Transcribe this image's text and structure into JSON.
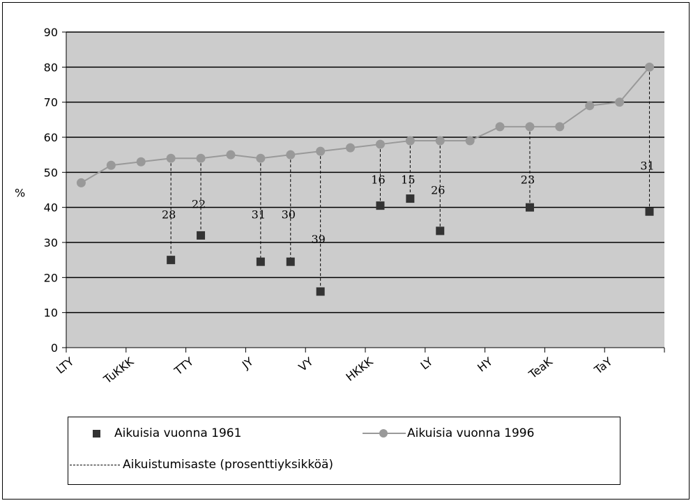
{
  "chart_data": {
    "type": "line",
    "ylabel": "%",
    "ylim": [
      0,
      90
    ],
    "yticks": [
      0,
      10,
      20,
      30,
      40,
      50,
      60,
      70,
      80,
      90
    ],
    "xtick_labels": [
      "LTY",
      "TuKKK",
      "TTY",
      "JY",
      "VY",
      "HKKK",
      "LY",
      "HY",
      "TeaK",
      "TaY"
    ],
    "grid": true,
    "legend_position": "bottom",
    "series_1996": {
      "name": "Aikuisia vuonna 1996",
      "color": "#999999",
      "values": [
        47,
        52,
        53,
        54,
        54,
        55,
        54,
        55,
        56,
        57,
        58,
        59,
        59,
        59,
        63,
        63,
        63,
        69,
        70,
        80
      ]
    },
    "series_1961": {
      "name": "Aikuisia vuonna 1961",
      "color": "#333333",
      "points": [
        {
          "x": 3,
          "y": 25
        },
        {
          "x": 4,
          "y": 32
        },
        {
          "x": 6,
          "y": 24.5
        },
        {
          "x": 7,
          "y": 24.5
        },
        {
          "x": 8,
          "y": 16
        },
        {
          "x": 10,
          "y": 40.5
        },
        {
          "x": 11,
          "y": 42.5
        },
        {
          "x": 12,
          "y": 33.3
        },
        {
          "x": 15,
          "y": 40
        },
        {
          "x": 19,
          "y": 38.8
        }
      ]
    },
    "differences": {
      "name": "Aikuistumisaste (prosenttiyksikköä)",
      "items": [
        {
          "x": 3,
          "label": "28",
          "label_y": 38
        },
        {
          "x": 4,
          "label": "22",
          "label_y": 41
        },
        {
          "x": 6,
          "label": "31",
          "label_y": 38
        },
        {
          "x": 7,
          "label": "30",
          "label_y": 38
        },
        {
          "x": 8,
          "label": "39",
          "label_y": 31
        },
        {
          "x": 10,
          "label": "16",
          "label_y": 48
        },
        {
          "x": 11,
          "label": "15",
          "label_y": 48
        },
        {
          "x": 12,
          "label": "26",
          "label_y": 45
        },
        {
          "x": 15,
          "label": "23",
          "label_y": 48
        },
        {
          "x": 19,
          "label": "31",
          "label_y": 52
        }
      ]
    },
    "colors": {
      "plot_background": "#cccccc",
      "gridline": "#000000"
    }
  },
  "legend": {
    "item_1961": "Aikuisia vuonna 1961",
    "item_1996": "Aikuisia vuonna 1996",
    "item_diff": "Aikuistumisaste (prosenttiyksikköä)"
  }
}
